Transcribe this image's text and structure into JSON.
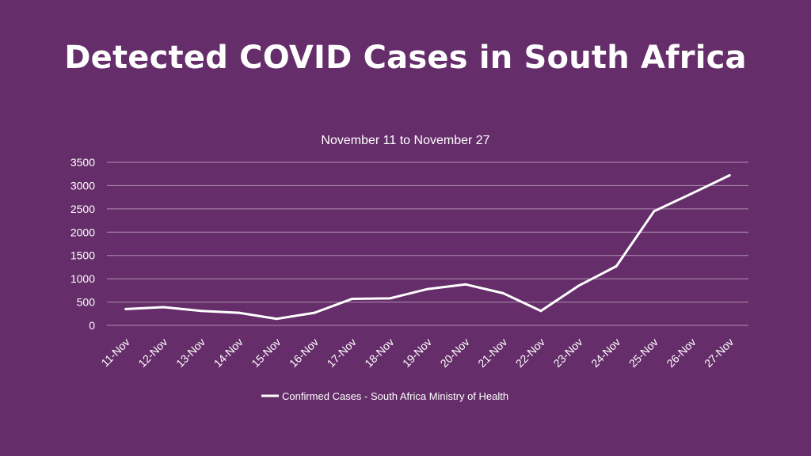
{
  "title": "Detected COVID Cases in South Africa",
  "colors": {
    "background": "#652d69",
    "line": "#ffffff",
    "grid": "#b08fb4"
  },
  "chart_data": {
    "type": "line",
    "title": "November 11 to November 27",
    "xlabel": "",
    "ylabel": "",
    "ylim": [
      0,
      3500
    ],
    "yticks": [
      "0",
      "500",
      "1000",
      "1500",
      "2000",
      "2500",
      "3000",
      "3500"
    ],
    "grid": true,
    "legend_position": "bottom",
    "categories": [
      "11-Nov",
      "12-Nov",
      "13-Nov",
      "14-Nov",
      "15-Nov",
      "16-Nov",
      "17-Nov",
      "18-Nov",
      "19-Nov",
      "20-Nov",
      "21-Nov",
      "22-Nov",
      "23-Nov",
      "24-Nov",
      "25-Nov",
      "26-Nov",
      "27-Nov"
    ],
    "series": [
      {
        "name": "Confirmed Cases - South Africa Ministry of Health",
        "values": [
          350,
          390,
          310,
          270,
          140,
          270,
          570,
          580,
          780,
          880,
          690,
          310,
          850,
          1270,
          2450,
          2830,
          3220
        ]
      }
    ]
  }
}
